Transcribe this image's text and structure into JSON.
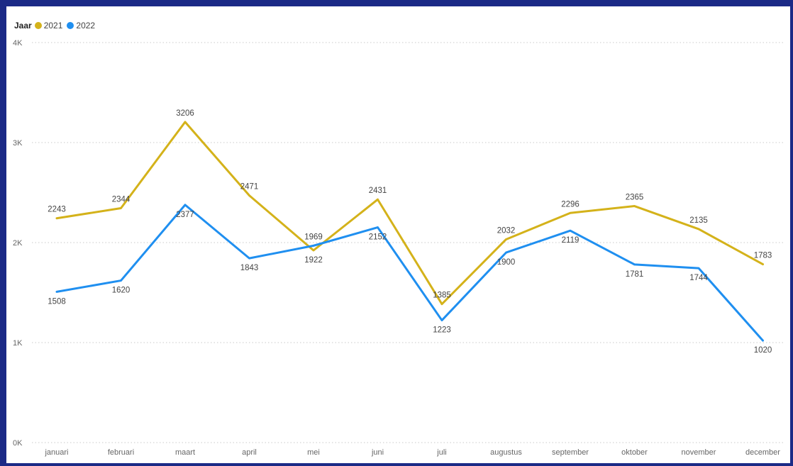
{
  "chart_data": {
    "type": "line",
    "legend_title": "Jaar",
    "legend_position": "top-left",
    "categories": [
      "januari",
      "februari",
      "maart",
      "april",
      "mei",
      "juni",
      "juli",
      "augustus",
      "september",
      "oktober",
      "november",
      "december"
    ],
    "series": [
      {
        "name": "2021",
        "color": "#d4b21a",
        "values": [
          2243,
          2344,
          3206,
          2471,
          1922,
          2431,
          1385,
          2032,
          2296,
          2365,
          2135,
          1783
        ]
      },
      {
        "name": "2022",
        "color": "#1f8ff0",
        "values": [
          1508,
          1620,
          2377,
          1843,
          1969,
          2152,
          1223,
          1900,
          2119,
          1781,
          1744,
          1020
        ]
      }
    ],
    "ylim": [
      0,
      4000
    ],
    "yticks": [
      {
        "value": 0,
        "label": "0K"
      },
      {
        "value": 1000,
        "label": "1K"
      },
      {
        "value": 2000,
        "label": "2K"
      },
      {
        "value": 3000,
        "label": "3K"
      },
      {
        "value": 4000,
        "label": "4K"
      }
    ],
    "grid": true
  }
}
